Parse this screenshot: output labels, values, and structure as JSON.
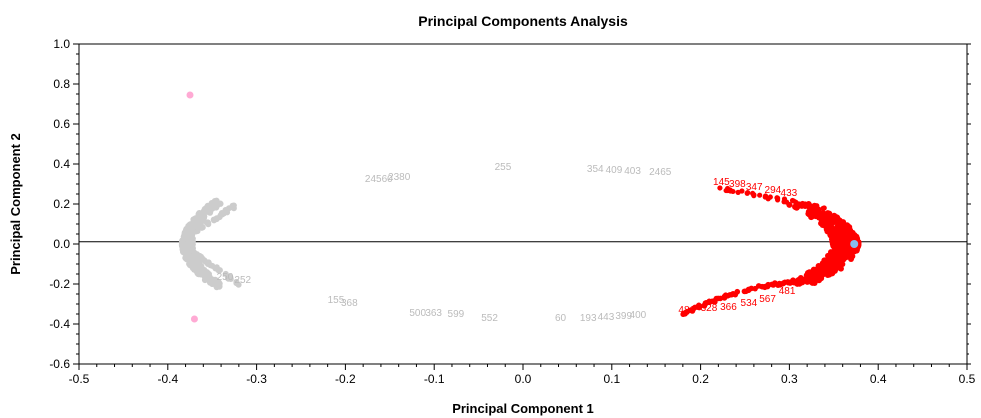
{
  "chart_data": {
    "type": "scatter",
    "title": "Principal Components Analysis",
    "xlabel": "Principal Component 1",
    "ylabel": "Principal Component 2",
    "xlim": [
      -0.5,
      0.5
    ],
    "ylim": [
      -0.6,
      1.0
    ],
    "xticks": [
      "-0.5",
      "-0.4",
      "-0.3",
      "-0.2",
      "-0.1",
      "0.0",
      "0.1",
      "0.2",
      "0.3",
      "0.4",
      "0.5"
    ],
    "yticks": [
      "1.0",
      "0.8",
      "0.6",
      "0.4",
      "0.2",
      "0.0",
      "-0.2",
      "-0.4",
      "-0.6"
    ],
    "grid": false,
    "zero_line": true,
    "colors": {
      "gray_cluster": "#cccccc",
      "red_cluster": "#ff0000",
      "pink_points": "#ffaad4",
      "blue_point": "#88bbee"
    },
    "gray_labels": [
      {
        "text": "24560",
        "x": -0.178,
        "y": 0.31
      },
      {
        "text": "2380",
        "x": -0.152,
        "y": 0.32
      },
      {
        "text": "255",
        "x": -0.032,
        "y": 0.37
      },
      {
        "text": "354",
        "x": 0.072,
        "y": 0.36
      },
      {
        "text": "409",
        "x": 0.093,
        "y": 0.355
      },
      {
        "text": "403",
        "x": 0.114,
        "y": 0.35
      },
      {
        "text": "2465",
        "x": 0.142,
        "y": 0.345
      },
      {
        "text": "155",
        "x": -0.22,
        "y": -0.295
      },
      {
        "text": "368",
        "x": -0.205,
        "y": -0.31
      },
      {
        "text": "500",
        "x": -0.128,
        "y": -0.36
      },
      {
        "text": "363",
        "x": -0.11,
        "y": -0.36
      },
      {
        "text": "599",
        "x": -0.085,
        "y": -0.365
      },
      {
        "text": "552",
        "x": -0.047,
        "y": -0.385
      },
      {
        "text": "60",
        "x": 0.036,
        "y": -0.385
      },
      {
        "text": "193",
        "x": 0.064,
        "y": -0.385
      },
      {
        "text": "443",
        "x": 0.084,
        "y": -0.38
      },
      {
        "text": "399",
        "x": 0.104,
        "y": -0.375
      },
      {
        "text": "400",
        "x": 0.12,
        "y": -0.37
      },
      {
        "text": "252",
        "x": -0.325,
        "y": -0.195
      },
      {
        "text": "250",
        "x": -0.345,
        "y": -0.18
      }
    ],
    "red_labels": [
      {
        "text": "145",
        "x": 0.214,
        "y": 0.295
      },
      {
        "text": "398",
        "x": 0.232,
        "y": 0.285
      },
      {
        "text": "347",
        "x": 0.251,
        "y": 0.27
      },
      {
        "text": "294",
        "x": 0.272,
        "y": 0.255
      },
      {
        "text": "433",
        "x": 0.29,
        "y": 0.24
      },
      {
        "text": "481",
        "x": 0.175,
        "y": -0.345
      },
      {
        "text": "328",
        "x": 0.2,
        "y": -0.335
      },
      {
        "text": "366",
        "x": 0.222,
        "y": -0.33
      },
      {
        "text": "534",
        "x": 0.245,
        "y": -0.31
      },
      {
        "text": "567",
        "x": 0.266,
        "y": -0.29
      },
      {
        "text": "481",
        "x": 0.288,
        "y": -0.25
      }
    ],
    "pink_points": [
      {
        "x": -0.375,
        "y": 0.745
      },
      {
        "x": -0.37,
        "y": -0.375
      }
    ],
    "blue_points": [
      {
        "x": 0.373,
        "y": 0.0
      }
    ]
  }
}
